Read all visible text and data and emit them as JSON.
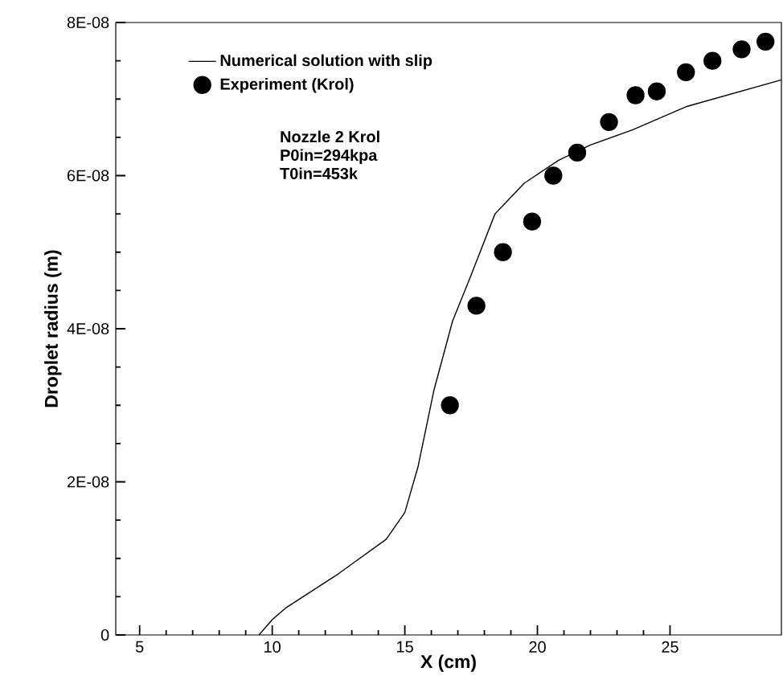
{
  "chart_data": {
    "type": "line",
    "xlabel": "X (cm)",
    "ylabel": "Droplet radius (m)",
    "xlim": [
      4.1,
      29.2
    ],
    "ylim": [
      0,
      8e-08
    ],
    "xticks": [
      5,
      10,
      15,
      20,
      25
    ],
    "yticks": [
      0,
      {
        "value": 2e-08,
        "label": "2E-08"
      },
      {
        "value": 4e-08,
        "label": "4E-08"
      },
      {
        "value": 6e-08,
        "label": "6E-08"
      },
      {
        "value": 8e-08,
        "label": "8E-08"
      }
    ],
    "legend": "top left",
    "grid": false,
    "annotations": [
      "Nozzle 2 Krol",
      "P0in=294kpa",
      "T0in=453k"
    ],
    "series": [
      {
        "name": "Numerical solution with slip",
        "type": "line",
        "color": "#000000",
        "marker": "none",
        "line_style": "solid",
        "x": [
          9.5,
          10,
          10.5,
          12.5,
          14.3,
          15,
          15.5,
          16.1,
          16.8,
          17.5,
          18.4,
          19.5,
          20.8,
          22,
          23.6,
          25.6,
          29.2
        ],
        "values": [
          0,
          2e-09,
          3.5e-09,
          8e-09,
          1.25e-08,
          1.6e-08,
          2.2e-08,
          3.2e-08,
          4.1e-08,
          4.7e-08,
          5.5e-08,
          5.9e-08,
          6.2e-08,
          6.4e-08,
          6.6e-08,
          6.9e-08,
          7.25e-08
        ]
      },
      {
        "name": "Experiment (Krol)",
        "type": "scatter",
        "color": "#000000",
        "marker": "circle",
        "x": [
          16.7,
          17.7,
          18.7,
          19.8,
          20.6,
          21.5,
          22.7,
          23.7,
          24.5,
          25.6,
          26.6,
          27.7,
          28.6
        ],
        "values": [
          3e-08,
          4.3e-08,
          5e-08,
          5.4e-08,
          6e-08,
          6.3e-08,
          6.7e-08,
          7.05e-08,
          7.1e-08,
          7.35e-08,
          7.5e-08,
          7.65e-08,
          7.75e-08
        ]
      }
    ]
  }
}
